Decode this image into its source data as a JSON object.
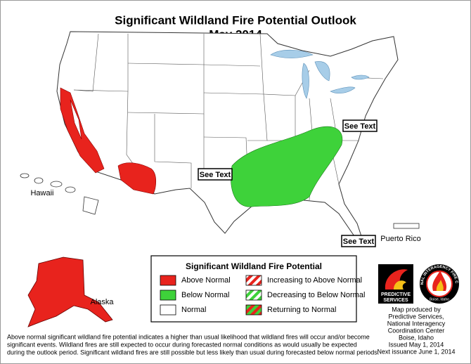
{
  "header": {
    "title": "Significant Wildland Fire Potential Outlook",
    "subtitle": "May 2014"
  },
  "map_labels": {
    "see_text_west": "See Text",
    "see_text_east": "See Text",
    "see_text_south": "See Text",
    "hawaii": "Hawaii",
    "alaska": "Alaska",
    "puerto_rico": "Puerto Rico"
  },
  "legend": {
    "title": "Significant Wildland Fire Potential",
    "items": [
      {
        "label": "Above Normal"
      },
      {
        "label": "Below Normal"
      },
      {
        "label": "Normal"
      },
      {
        "label": "Increasing to Above Normal"
      },
      {
        "label": "Decreasing to Below Normal"
      },
      {
        "label": "Returning to Normal"
      }
    ]
  },
  "logos": {
    "predictive": [
      "PREDICTIVE",
      "SERVICES"
    ],
    "nifc": "NATIONAL INTERAGENCY FIRE CENTER",
    "nifc_city": "Boise, Idaho"
  },
  "credits": [
    "Map produced by",
    "Predictive Services,",
    "National Interagency",
    "Coordination Center",
    "Boise, Idaho",
    "Issued May 1, 2014",
    "Next issuance June 1, 2014"
  ],
  "footnote": [
    "Above normal significant wildland fire potential indicates a higher than usual likelihood that wildland fires will occur and/or become",
    "significant events.  Wildland fires are still expected to occur during forecasted normal conditions as would usually be expected",
    "during the outlook period.  Significant wildland fires are still possible but less likely than usual during forecasted below normal periods."
  ]
}
